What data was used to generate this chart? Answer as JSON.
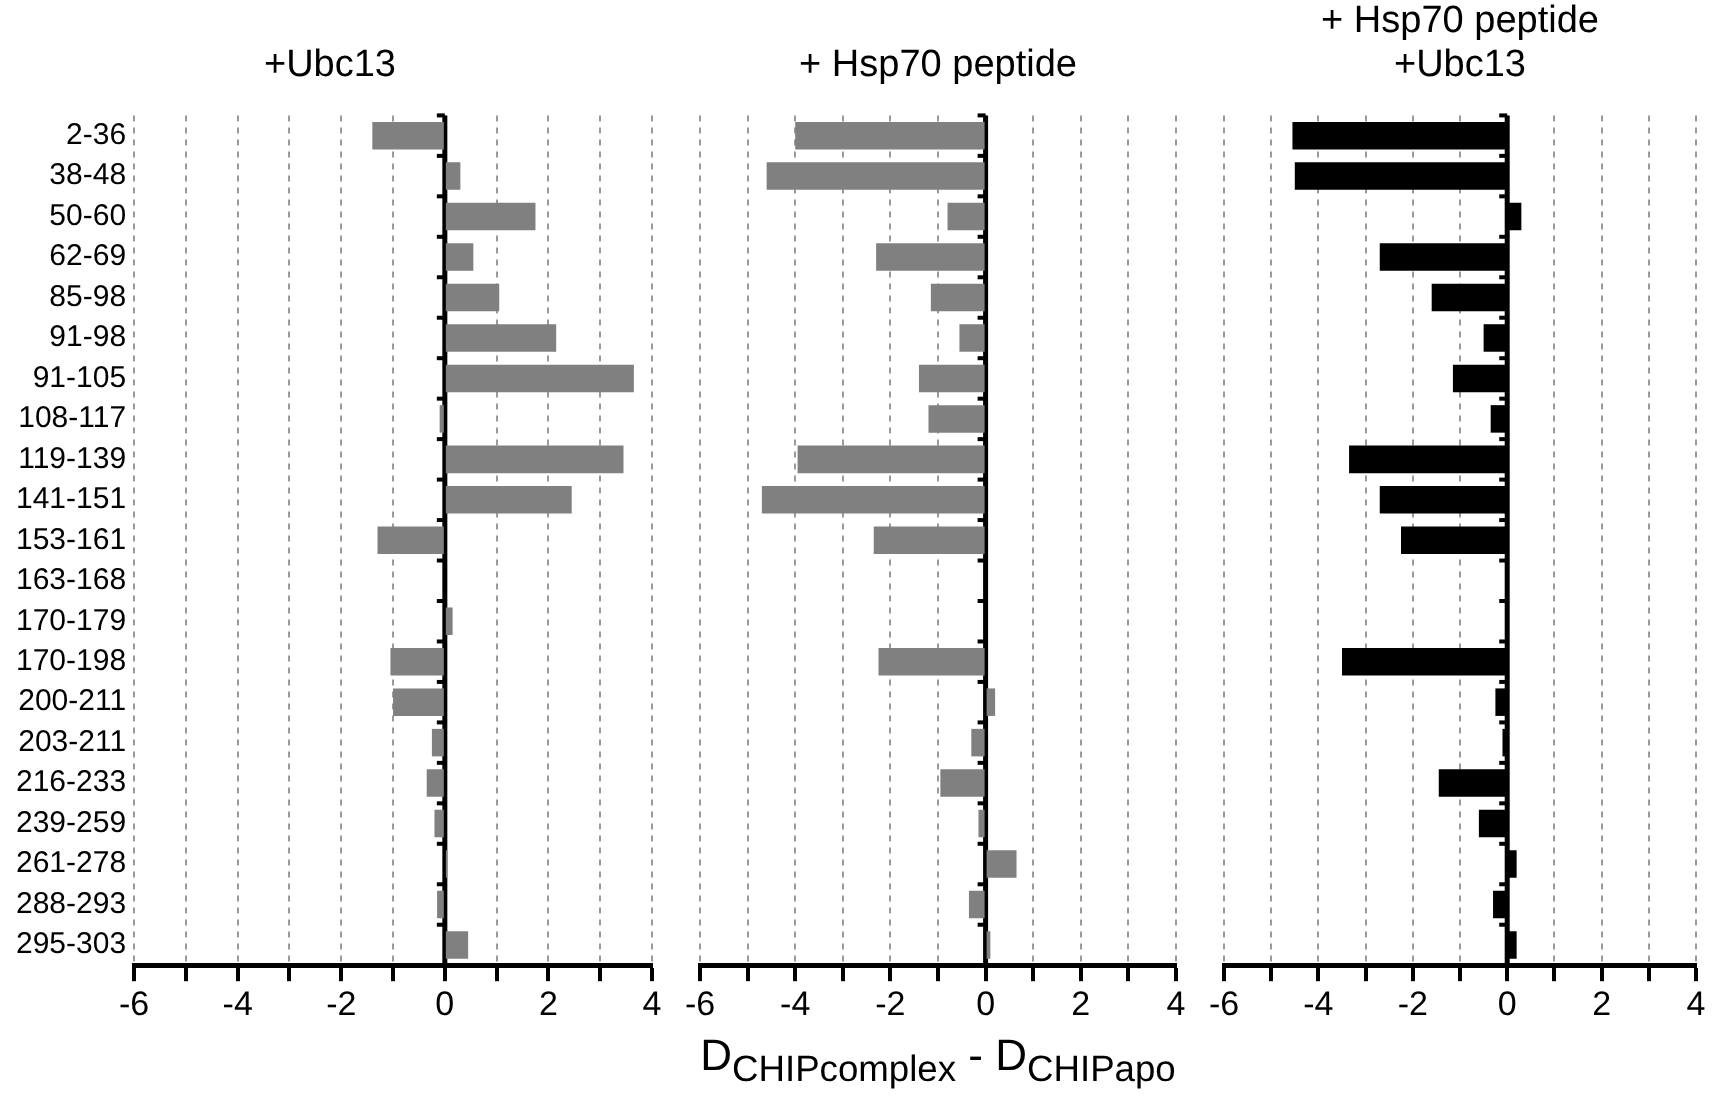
{
  "chart_data": [
    {
      "type": "bar",
      "orientation": "horizontal",
      "title": "+Ubc13",
      "categories": [
        "2-36",
        "38-48",
        "50-60",
        "62-69",
        "85-98",
        "91-98",
        "91-105",
        "108-117",
        "119-139",
        "141-151",
        "153-161",
        "163-168",
        "170-179",
        "170-198",
        "200-211",
        "203-211",
        "216-233",
        "239-259",
        "261-278",
        "288-293",
        "295-303"
      ],
      "series": [
        {
          "color": "#808080",
          "values": [
            -1.4,
            0.3,
            1.75,
            0.55,
            1.05,
            2.15,
            3.65,
            -0.1,
            3.45,
            2.45,
            -1.3,
            0,
            0.15,
            -1.05,
            -1.0,
            -0.25,
            -0.35,
            -0.2,
            0.05,
            -0.15,
            0.45
          ]
        }
      ],
      "xlim": [
        -6,
        4
      ],
      "xticks": [
        -6,
        {
          "value": -5,
          "label": null
        },
        -4,
        {
          "value": -3,
          "label": null
        },
        -2,
        {
          "value": -1,
          "label": null
        },
        0,
        {
          "value": 1,
          "label": null
        },
        2,
        {
          "value": 3,
          "label": null
        },
        4
      ],
      "grid": "x",
      "legend": false
    },
    {
      "type": "bar",
      "orientation": "horizontal",
      "title": "+ Hsp70 peptide",
      "xlabel": "D$_{CHIPcomplex}$ - D$_{CHIPapo}$",
      "categories": [
        null,
        null,
        null,
        null,
        null,
        null,
        null,
        null,
        null,
        null,
        null,
        null,
        null,
        null,
        null,
        null,
        null,
        null,
        null,
        null,
        null
      ],
      "series": [
        {
          "color": "#808080",
          "values": [
            -4.0,
            -4.6,
            -0.8,
            -2.3,
            -1.15,
            -0.55,
            -1.4,
            -1.2,
            -3.95,
            -4.7,
            -2.35,
            0,
            0,
            -2.25,
            0.2,
            -0.3,
            -0.95,
            -0.15,
            0.65,
            -0.35,
            0.1
          ]
        }
      ],
      "xlim": [
        -6,
        4
      ],
      "xticks": [
        -6,
        {
          "value": -5,
          "label": null
        },
        -4,
        {
          "value": -3,
          "label": null
        },
        -2,
        {
          "value": -1,
          "label": null
        },
        0,
        {
          "value": 1,
          "label": null
        },
        2,
        {
          "value": 3,
          "label": null
        },
        4
      ],
      "grid": "x",
      "legend": false,
      "tick_labels": "x"
    },
    {
      "type": "bar",
      "orientation": "horizontal",
      "title": "+ Hsp70 peptide\n+Ubc13",
      "categories": [
        null,
        null,
        null,
        null,
        null,
        null,
        null,
        null,
        null,
        null,
        null,
        null,
        null,
        null,
        null,
        null,
        null,
        null,
        null,
        null,
        null
      ],
      "series": [
        {
          "color": "#000000",
          "values": [
            -4.55,
            -4.5,
            0.3,
            -2.7,
            -1.6,
            -0.5,
            -1.15,
            -0.35,
            -3.35,
            -2.7,
            -2.25,
            0,
            0,
            -3.5,
            -0.25,
            -0.1,
            -1.45,
            -0.6,
            0.2,
            -0.3,
            0.2
          ]
        }
      ],
      "xlim": [
        -6,
        4
      ],
      "xticks": [
        -6,
        {
          "value": -5,
          "label": null
        },
        -4,
        {
          "value": -3,
          "label": null
        },
        -2,
        {
          "value": -1,
          "label": null
        },
        0,
        {
          "value": 1,
          "label": null
        },
        2,
        {
          "value": 3,
          "label": null
        },
        4
      ],
      "grid": "x",
      "legend": false,
      "tick_labels": "x"
    }
  ]
}
